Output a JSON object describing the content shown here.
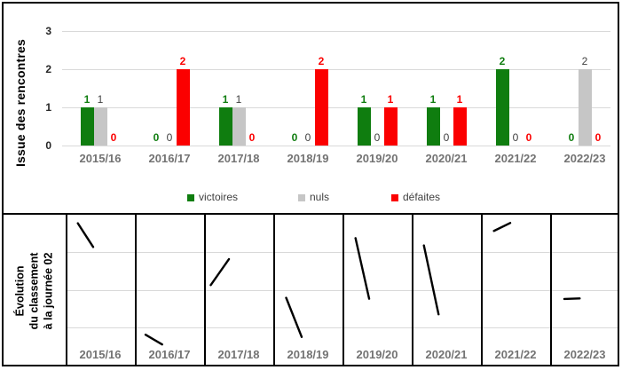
{
  "colors": {
    "background": "#ffffff",
    "border": "#000000",
    "gridline": "#d9d9d9",
    "tick_label": "#262626",
    "axis_title": "#000000",
    "season_label": "#737373",
    "sparkline": "#000000"
  },
  "chart_data": [
    {
      "type": "bar",
      "ylabel": "Issue des rencontres",
      "categories": [
        "2015/16",
        "2016/17",
        "2017/18",
        "2018/19",
        "2019/20",
        "2020/21",
        "2021/22",
        "2022/23"
      ],
      "series": [
        {
          "name": "victoires",
          "color": "#0f7d0f",
          "label_color": "#0f7d0f",
          "values": [
            1,
            0,
            1,
            0,
            1,
            1,
            2,
            0
          ]
        },
        {
          "name": "nuls",
          "color": "#c6c6c6",
          "label_color": "#404040",
          "values": [
            1,
            0,
            1,
            0,
            0,
            0,
            0,
            2
          ]
        },
        {
          "name": "défaites",
          "color": "#fb0000",
          "label_color": "#fb0000",
          "values": [
            0,
            2,
            0,
            2,
            1,
            1,
            0,
            0
          ]
        }
      ],
      "ylim": [
        0,
        3
      ],
      "yticks": [
        3,
        2,
        1,
        0
      ],
      "grid": true,
      "legend_position": "bottom"
    },
    {
      "type": "line",
      "title": "Évolution du classement à la journée 02",
      "ylabel_lines": [
        "Évolution",
        "du classement",
        "à la journée 02"
      ],
      "categories": [
        "2015/16",
        "2016/17",
        "2017/18",
        "2018/19",
        "2019/20",
        "2020/21",
        "2021/22",
        "2022/23"
      ],
      "segments": [
        [
          0.176,
          0.057,
          0.397,
          0.215
        ],
        [
          0.154,
          0.8,
          0.394,
          0.865
        ],
        [
          0.096,
          0.469,
          0.359,
          0.296
        ],
        [
          0.186,
          0.554,
          0.41,
          0.815
        ],
        [
          0.188,
          0.156,
          0.385,
          0.56
        ],
        [
          0.176,
          0.205,
          0.388,
          0.664
        ],
        [
          0.188,
          0.108,
          0.423,
          0.055
        ],
        [
          0.205,
          0.562,
          0.427,
          0.558
        ]
      ]
    }
  ]
}
